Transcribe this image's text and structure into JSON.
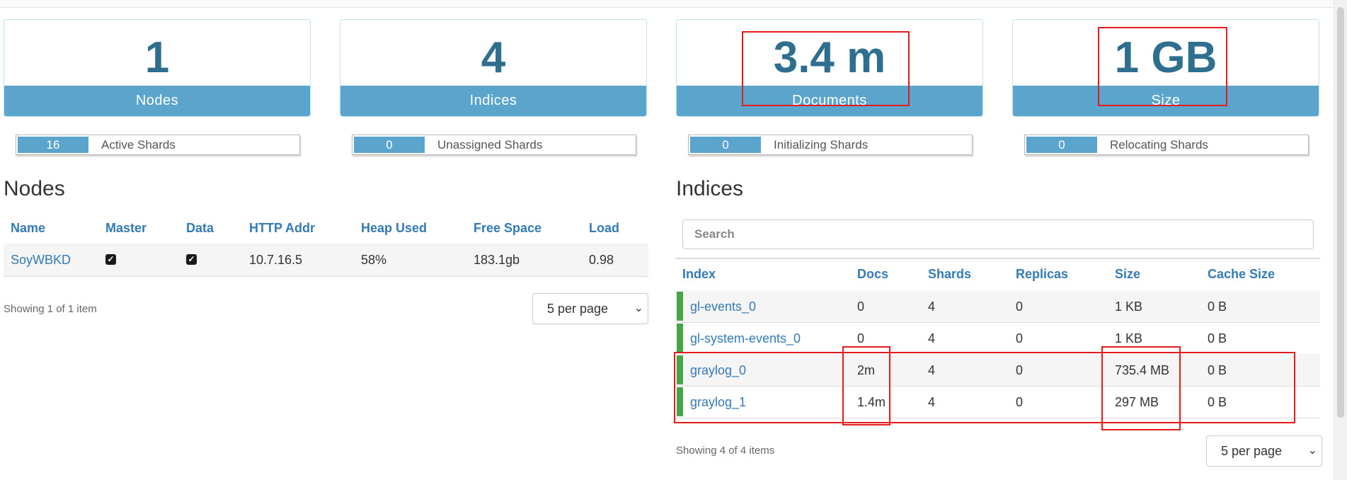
{
  "stats": [
    {
      "value": "1",
      "label": "Nodes"
    },
    {
      "value": "4",
      "label": "Indices"
    },
    {
      "value": "3.4 m",
      "label": "Documents"
    },
    {
      "value": "1 GB",
      "label": "Size"
    }
  ],
  "shards": [
    {
      "count": "16",
      "label": "Active Shards"
    },
    {
      "count": "0",
      "label": "Unassigned Shards"
    },
    {
      "count": "0",
      "label": "Initializing Shards"
    },
    {
      "count": "0",
      "label": "Relocating Shards"
    }
  ],
  "nodes": {
    "title": "Nodes",
    "columns": [
      "Name",
      "Master",
      "Data",
      "HTTP Addr",
      "Heap Used",
      "Free Space",
      "Load"
    ],
    "rows": [
      {
        "name": "SoyWBKD",
        "master": true,
        "data": true,
        "http_addr": "10.7.16.5",
        "heap_used": "58%",
        "free_space": "183.1gb",
        "load": "0.98"
      }
    ],
    "showing": "Showing 1 of 1 item",
    "per_page": "5 per page"
  },
  "indices": {
    "title": "Indices",
    "search_placeholder": "Search",
    "columns": [
      "Index",
      "Docs",
      "Shards",
      "Replicas",
      "Size",
      "Cache Size"
    ],
    "rows": [
      {
        "index": "gl-events_0",
        "docs": "0",
        "shards": "4",
        "replicas": "0",
        "size": "1 KB",
        "cache_size": "0 B",
        "health_color": "#47a447"
      },
      {
        "index": "gl-system-events_0",
        "docs": "0",
        "shards": "4",
        "replicas": "0",
        "size": "1 KB",
        "cache_size": "0 B",
        "health_color": "#47a447"
      },
      {
        "index": "graylog_0",
        "docs": "2m",
        "shards": "4",
        "replicas": "0",
        "size": "735.4 MB",
        "cache_size": "0 B",
        "health_color": "#47a447"
      },
      {
        "index": "graylog_1",
        "docs": "1.4m",
        "shards": "4",
        "replicas": "0",
        "size": "297 MB",
        "cache_size": "0 B",
        "health_color": "#47a447"
      }
    ],
    "showing": "Showing 4 of 4 items",
    "per_page": "5 per page"
  },
  "colors": {
    "accent": "#5ba5cd",
    "value_text": "#2e6e8e",
    "link": "#337ab7",
    "health_green": "#47a447",
    "highlight_red": "#e31b1b"
  }
}
